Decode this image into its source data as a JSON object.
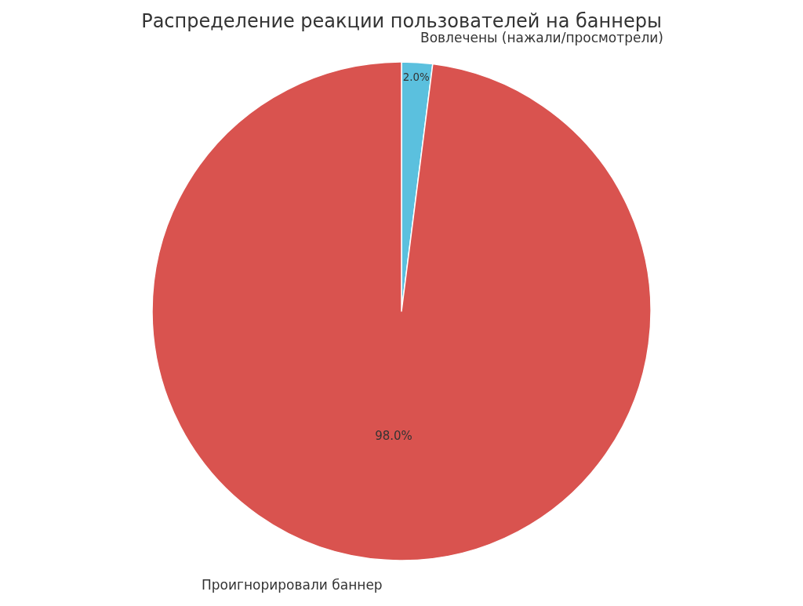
{
  "chart_data": {
    "type": "pie",
    "title": "Распределение реакции пользователей на баннеры",
    "categories": [
      "Вовлечены (нажали/просмотрели)",
      "Проигнорировали баннер"
    ],
    "values": [
      2,
      98
    ],
    "value_labels": [
      "2.0%",
      "98.0%"
    ],
    "colors": [
      "#5bc0de",
      "#d9534f"
    ],
    "legend": false
  }
}
